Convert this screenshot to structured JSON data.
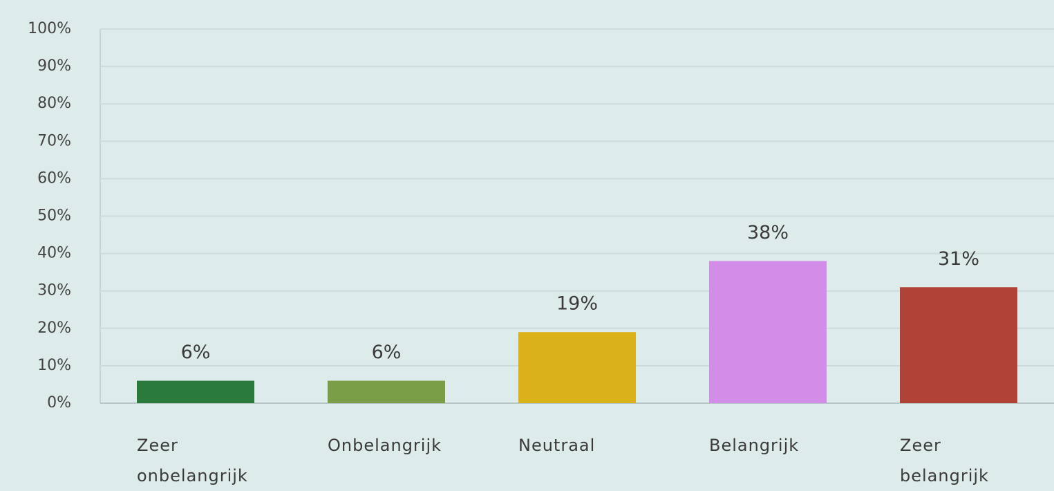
{
  "chart_data": {
    "type": "bar",
    "categories": [
      "Zeer onbelangrijk",
      "Onbelangrijk",
      "Neutraal",
      "Belangrijk",
      "Zeer belangrijk"
    ],
    "values": [
      6,
      6,
      19,
      38,
      31
    ],
    "value_labels": [
      "6%",
      "6%",
      "19%",
      "38%",
      "31%"
    ],
    "colors": [
      "#2a7a3c",
      "#7a9e46",
      "#dbb11a",
      "#d28de8",
      "#b04238"
    ],
    "ylim": [
      0,
      100
    ],
    "yticks": [
      {
        "value": 0,
        "label": "0%"
      },
      {
        "value": 10,
        "label": "10%"
      },
      {
        "value": 20,
        "label": "20%"
      },
      {
        "value": 30,
        "label": "30%"
      },
      {
        "value": 40,
        "label": "40%"
      },
      {
        "value": 50,
        "label": "50%"
      },
      {
        "value": 60,
        "label": "60%"
      },
      {
        "value": 70,
        "label": "70%"
      },
      {
        "value": 80,
        "label": "80%"
      },
      {
        "value": 90,
        "label": "90%"
      },
      {
        "value": 100,
        "label": "100%"
      }
    ],
    "grid": true
  }
}
